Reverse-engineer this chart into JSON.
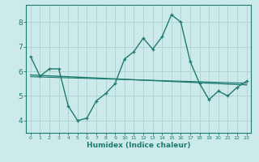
{
  "xlabel": "Humidex (Indice chaleur)",
  "ylabel": "",
  "xlim": [
    -0.5,
    23.5
  ],
  "ylim": [
    3.5,
    8.7
  ],
  "yticks": [
    4,
    5,
    6,
    7,
    8
  ],
  "xticks": [
    0,
    1,
    2,
    3,
    4,
    5,
    6,
    7,
    8,
    9,
    10,
    11,
    12,
    13,
    14,
    15,
    16,
    17,
    18,
    19,
    20,
    21,
    22,
    23
  ],
  "bg_color": "#cdeaea",
  "grid_color": "#afd0d0",
  "line_color": "#1e7b70",
  "line1_x": [
    0,
    1,
    2,
    3,
    4,
    5,
    6,
    7,
    8,
    9,
    10,
    11,
    12,
    13,
    14,
    15,
    16,
    17,
    18,
    19,
    20,
    21,
    22,
    23
  ],
  "line1_y": [
    6.6,
    5.8,
    6.1,
    6.1,
    4.6,
    4.0,
    4.1,
    4.8,
    5.1,
    5.5,
    6.5,
    6.8,
    7.35,
    6.9,
    7.4,
    8.3,
    8.0,
    6.4,
    5.5,
    4.85,
    5.2,
    5.0,
    5.35,
    5.6
  ],
  "line2_x": [
    0,
    23
  ],
  "line2_y": [
    5.85,
    5.45
  ],
  "line3_x": [
    0,
    23
  ],
  "line3_y": [
    5.78,
    5.52
  ]
}
